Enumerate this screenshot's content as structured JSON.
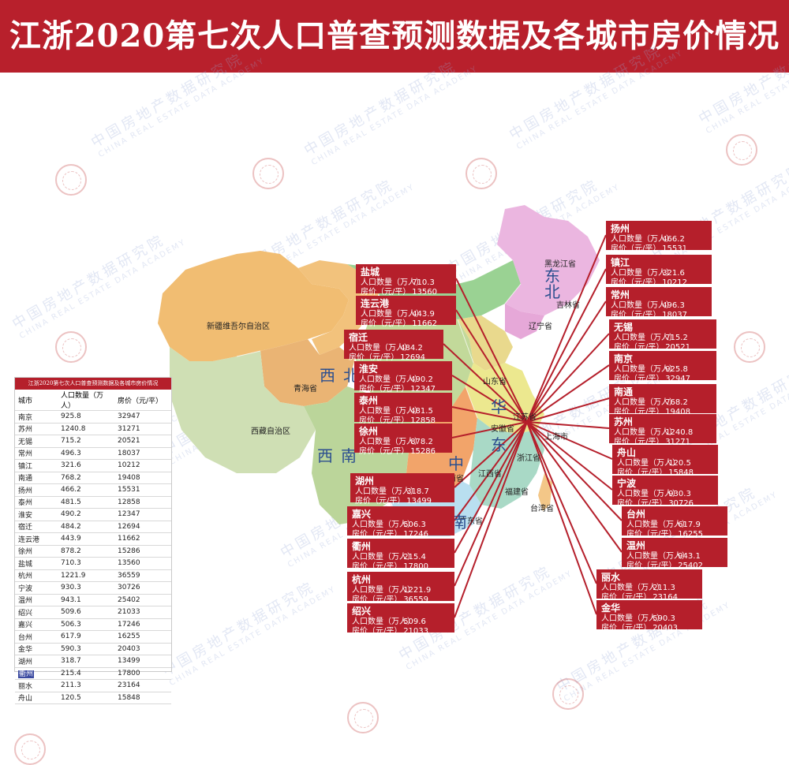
{
  "title": "江浙2020第七次人口普查预测数据及各城市房价情况",
  "watermark": {
    "cn": "中国房地产数据研究院",
    "en": "CHINA REAL ESTATE DATA ACADEMY"
  },
  "map": {
    "region_labels": {
      "xinjiang": "新疆维吾尔自治区",
      "qinghai": "青海省",
      "xizang": "西藏自治区",
      "heilongjiang": "黑龙江省",
      "jilin": "吉林省",
      "liaoning": "辽宁省",
      "shandong": "山东省",
      "jiangsu": "江苏省",
      "anhui": "安徽省",
      "shanghai": "上海市",
      "zhejiang": "浙江省",
      "jiangxi": "江西省",
      "fujian": "福建省",
      "taiwan": "台湾省",
      "hunan": "湖南省",
      "guangdong": "广东省"
    },
    "big_regions": {
      "xi1": "西",
      "bei1": "北",
      "xi2": "西",
      "nan1": "南",
      "dong1": "东",
      "bei2": "北",
      "hua": "华",
      "dong2": "东",
      "zhong": "中",
      "nan2": "南"
    }
  },
  "labels": {
    "population": "人口数量（万人）",
    "price": "房价（元/平）"
  },
  "cities_left": [
    {
      "name": "盐城",
      "population": "710.3",
      "price": "13560"
    },
    {
      "name": "连云港",
      "population": "443.9",
      "price": "11662"
    },
    {
      "name": "宿迁",
      "population": "484.2",
      "price": "12694"
    },
    {
      "name": "淮安",
      "population": "490.2",
      "price": "12347"
    },
    {
      "name": "泰州",
      "population": "481.5",
      "price": "12858"
    },
    {
      "name": "徐州",
      "population": "878.2",
      "price": "15286"
    },
    {
      "name": "湖州",
      "population": "318.7",
      "price": "13499"
    },
    {
      "name": "嘉兴",
      "population": "506.3",
      "price": "17246"
    },
    {
      "name": "衢州",
      "population": "215.4",
      "price": "17800"
    },
    {
      "name": "杭州",
      "population": "1221.9",
      "price": "36559"
    },
    {
      "name": "绍兴",
      "population": "509.6",
      "price": "21033"
    }
  ],
  "cities_right": [
    {
      "name": "扬州",
      "population": "466.2",
      "price": "15531"
    },
    {
      "name": "镇江",
      "population": "321.6",
      "price": "10212"
    },
    {
      "name": "常州",
      "population": "496.3",
      "price": "18037"
    },
    {
      "name": "无锡",
      "population": "715.2",
      "price": "20521"
    },
    {
      "name": "南京",
      "population": "925.8",
      "price": "32947"
    },
    {
      "name": "南通",
      "population": "768.2",
      "price": "19408"
    },
    {
      "name": "苏州",
      "population": "1240.8",
      "price": "31271"
    },
    {
      "name": "舟山",
      "population": "120.5",
      "price": "15848"
    },
    {
      "name": "宁波",
      "population": "930.3",
      "price": "30726"
    },
    {
      "name": "台州",
      "population": "617.9",
      "price": "16255"
    },
    {
      "name": "温州",
      "population": "943.1",
      "price": "25402"
    },
    {
      "name": "丽水",
      "population": "211.3",
      "price": "23164"
    },
    {
      "name": "金华",
      "population": "590.3",
      "price": "20403"
    }
  ],
  "table": {
    "caption": "江浙2020第七次人口普查预测数据及各城市房价情况",
    "headers": [
      "城市",
      "人口数量（万人）",
      "房价（元/平）"
    ],
    "rows": [
      [
        "南京",
        "925.8",
        "32947"
      ],
      [
        "苏州",
        "1240.8",
        "31271"
      ],
      [
        "无锡",
        "715.2",
        "20521"
      ],
      [
        "常州",
        "496.3",
        "18037"
      ],
      [
        "镇江",
        "321.6",
        "10212"
      ],
      [
        "南通",
        "768.2",
        "19408"
      ],
      [
        "扬州",
        "466.2",
        "15531"
      ],
      [
        "泰州",
        "481.5",
        "12858"
      ],
      [
        "淮安",
        "490.2",
        "12347"
      ],
      [
        "宿迁",
        "484.2",
        "12694"
      ],
      [
        "连云港",
        "443.9",
        "11662"
      ],
      [
        "徐州",
        "878.2",
        "15286"
      ],
      [
        "盐城",
        "710.3",
        "13560"
      ],
      [
        "杭州",
        "1221.9",
        "36559"
      ],
      [
        "宁波",
        "930.3",
        "30726"
      ],
      [
        "温州",
        "943.1",
        "25402"
      ],
      [
        "绍兴",
        "509.6",
        "21033"
      ],
      [
        "嘉兴",
        "506.3",
        "17246"
      ],
      [
        "台州",
        "617.9",
        "16255"
      ],
      [
        "金华",
        "590.3",
        "20403"
      ],
      [
        "湖州",
        "318.7",
        "13499"
      ],
      [
        "衢州",
        "215.4",
        "17800"
      ],
      [
        "丽水",
        "211.3",
        "23164"
      ],
      [
        "舟山",
        "120.5",
        "15848"
      ]
    ],
    "highlight_row": 21
  },
  "colors": {
    "brand_red": "#b8202c",
    "box_red": "#b51f2b"
  }
}
